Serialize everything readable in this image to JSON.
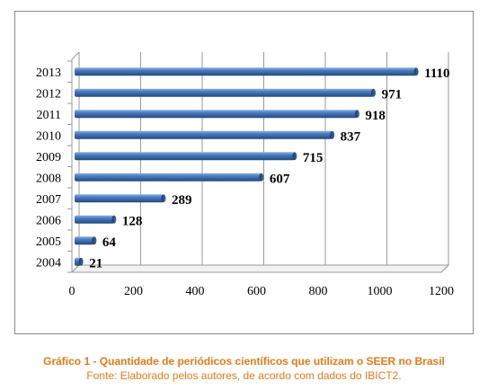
{
  "chart_data": {
    "type": "bar",
    "orientation": "horizontal",
    "categories": [
      "2004",
      "2005",
      "2006",
      "2007",
      "2008",
      "2009",
      "2010",
      "2011",
      "2012",
      "2013"
    ],
    "values": [
      21,
      64,
      128,
      289,
      607,
      715,
      837,
      918,
      971,
      1110
    ],
    "data_labels": [
      "21",
      "64",
      "128",
      "289",
      "607",
      "715",
      "837",
      "918",
      "971",
      "1110"
    ],
    "xlim": [
      0,
      1200
    ],
    "xticks": [
      "0",
      "200",
      "400",
      "600",
      "800",
      "1000",
      "1200"
    ],
    "grid": "vertical",
    "legend": "none",
    "bar_color": "#2e5e9e",
    "bar_highlight": "#8fb0de",
    "grid_color": "#9a9a9a"
  },
  "caption": {
    "title": "Gráfico 1 - Quantidade de periódicos científicos que utilizam o SEER no Brasil",
    "source": "Fonte: Elaborado pelos autores, de acordo com dados do IBICT2."
  },
  "colors": {
    "caption_text": "#e07b1a",
    "frame_border": "#8c8c8c"
  }
}
